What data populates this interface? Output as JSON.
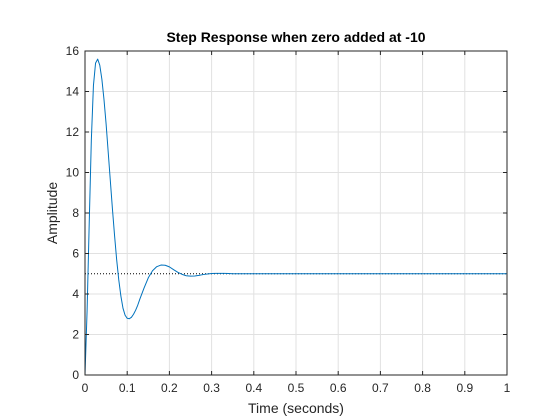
{
  "chart_data": {
    "type": "line",
    "title": "Step Response when zero added at -10",
    "xlabel": "Time (seconds)",
    "ylabel": "Amplitude",
    "xlim": [
      0,
      1
    ],
    "ylim": [
      0,
      16
    ],
    "xticks": [
      0,
      0.1,
      0.2,
      0.3,
      0.4,
      0.5,
      0.6,
      0.7,
      0.8,
      0.9,
      1
    ],
    "xtick_labels": [
      "0",
      "0.1",
      "0.2",
      "0.3",
      "0.4",
      "0.5",
      "0.6",
      "0.7",
      "0.8",
      "0.9",
      "1"
    ],
    "yticks": [
      0,
      2,
      4,
      6,
      8,
      10,
      12,
      14,
      16
    ],
    "ytick_labels": [
      "0",
      "2",
      "4",
      "6",
      "8",
      "10",
      "12",
      "14",
      "16"
    ],
    "grid": true,
    "steady_state": 5,
    "colors": {
      "response": "#0072bd",
      "steady_state": "#000000",
      "grid": "#e1e1e1",
      "axes": "#262626"
    },
    "series": [
      {
        "x": [
          0,
          0.005,
          0.01,
          0.015,
          0.02,
          0.025,
          0.03,
          0.035,
          0.04,
          0.045,
          0.05,
          0.055,
          0.06,
          0.065,
          0.07,
          0.075,
          0.08,
          0.085,
          0.09,
          0.095,
          0.1,
          0.105,
          0.11,
          0.115,
          0.12,
          0.125,
          0.13,
          0.14,
          0.15,
          0.16,
          0.17,
          0.18,
          0.19,
          0.2,
          0.21,
          0.22,
          0.23,
          0.24,
          0.25,
          0.26,
          0.27,
          0.28,
          0.29,
          0.3,
          0.31,
          0.32,
          0.33,
          0.34,
          0.35,
          0.36,
          0.38,
          0.4,
          0.45,
          0.5,
          0.6,
          0.7,
          0.8,
          0.9,
          1
        ],
        "y": [
          0,
          3.2,
          7.5,
          11.6,
          14.3,
          15.4,
          15.6,
          15.3,
          14.6,
          13.6,
          12.4,
          11.0,
          9.6,
          8.2,
          6.9,
          5.7,
          4.7,
          3.9,
          3.3,
          2.95,
          2.8,
          2.78,
          2.85,
          3.0,
          3.2,
          3.45,
          3.75,
          4.3,
          4.8,
          5.15,
          5.35,
          5.43,
          5.42,
          5.34,
          5.2,
          5.07,
          4.97,
          4.9,
          4.88,
          4.89,
          4.92,
          4.96,
          4.99,
          5.01,
          5.02,
          5.02,
          5.02,
          5.01,
          5.0,
          5.0,
          5.0,
          5.0,
          5.0,
          5.0,
          5.0,
          5.0,
          5.0,
          5.0,
          5.0
        ]
      }
    ]
  }
}
